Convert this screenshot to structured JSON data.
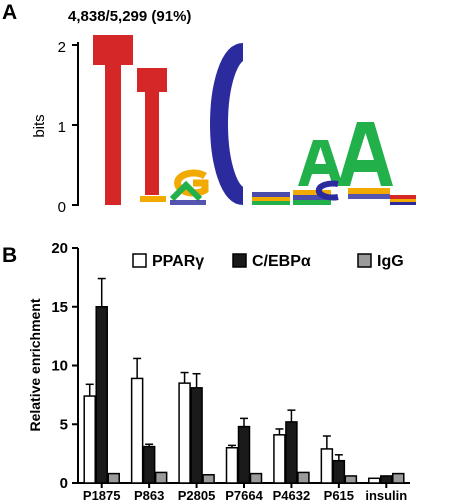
{
  "panels": {
    "a_letter": "A",
    "b_letter": "B"
  },
  "logo": {
    "count_label": "4,838/5,299 (91%)",
    "ylabel": "bits",
    "yticks": [
      "0",
      "1",
      "2"
    ],
    "colors": {
      "T": "#d62728",
      "C": "#2b2b9e",
      "A": "#22b04b",
      "G": "#f2a900"
    },
    "motif": "TTGCAA"
  },
  "chart_data": {
    "type": "bar",
    "title": "",
    "xlabel": "",
    "ylabel": "Relative enrichment",
    "ylim": [
      0,
      20
    ],
    "yticks": [
      0,
      5,
      10,
      15,
      20
    ],
    "categories": [
      "P1875",
      "P863",
      "P2805",
      "P7664",
      "P4632",
      "P615",
      "insulin"
    ],
    "series": [
      {
        "name": "PPARγ",
        "color": "#ffffff",
        "values": [
          7.4,
          8.9,
          8.5,
          3.0,
          4.1,
          2.9,
          0.4
        ],
        "errors": [
          1.0,
          1.7,
          0.9,
          0.2,
          0.5,
          1.1,
          0.1
        ]
      },
      {
        "name": "C/EBPα",
        "color": "#1a1a1a",
        "values": [
          15.0,
          3.1,
          8.1,
          4.8,
          5.2,
          1.9,
          0.6
        ],
        "errors": [
          2.4,
          0.2,
          1.2,
          0.7,
          1.0,
          0.5,
          0.1
        ]
      },
      {
        "name": "IgG",
        "color": "#9a9a9a",
        "values": [
          0.8,
          0.9,
          0.7,
          0.8,
          0.9,
          0.6,
          0.8
        ],
        "errors": [
          0.1,
          0.1,
          0.1,
          0.1,
          0.1,
          0.1,
          0.1
        ]
      }
    ],
    "legend_position": "top-right"
  }
}
